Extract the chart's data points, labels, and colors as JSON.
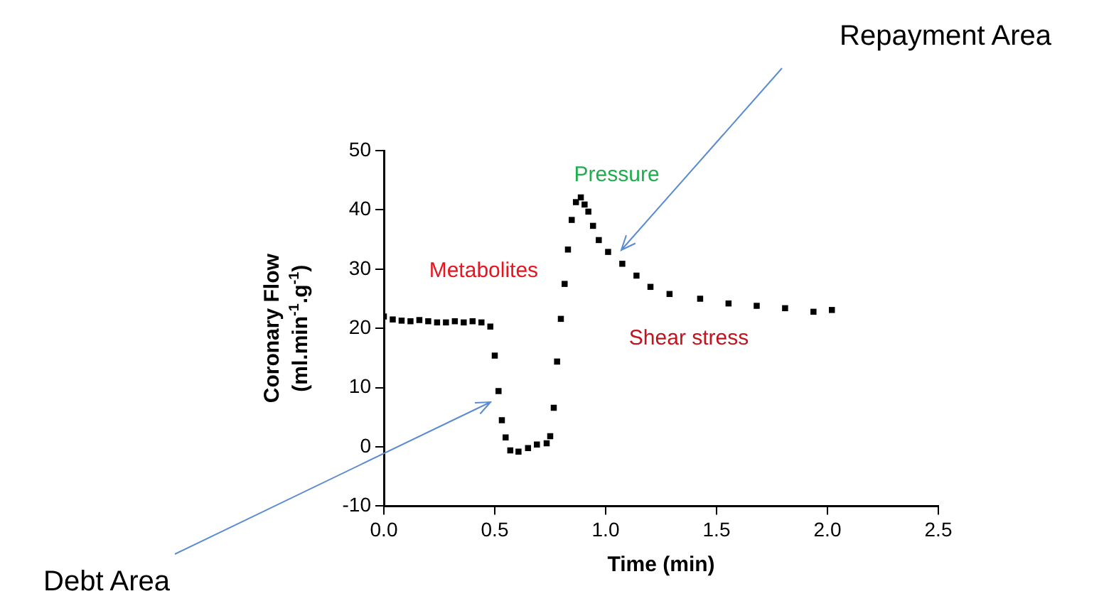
{
  "chart_data": {
    "type": "scatter",
    "xlabel": "Time (min)",
    "ylabel": "Coronary Flow (ml.min$^{-1}$.g$^{-1}$)",
    "x": [
      0,
      0.04,
      0.08,
      0.12,
      0.16,
      0.2,
      0.24,
      0.28,
      0.32,
      0.36,
      0.4,
      0.44,
      0.48,
      0.5,
      0.517,
      0.532,
      0.549,
      0.57,
      0.607,
      0.65,
      0.69,
      0.734,
      0.75,
      0.766,
      0.781,
      0.798,
      0.815,
      0.83,
      0.847,
      0.866,
      0.888,
      0.905,
      0.922,
      0.943,
      0.969,
      1.011,
      1.075,
      1.139,
      1.202,
      1.288,
      1.426,
      1.554,
      1.681,
      1.809,
      1.937,
      2.02
    ],
    "series": [
      {
        "color": "#000000",
        "values": [
          22,
          21.5,
          21.3,
          21.2,
          21.4,
          21.2,
          21,
          21,
          21.2,
          21,
          21.2,
          21,
          20.3,
          15.4,
          9.4,
          4.5,
          1.6,
          -0.6,
          -0.8,
          -0.2,
          0.4,
          0.6,
          1.8,
          6.6,
          14.4,
          21.6,
          27.5,
          33.3,
          38.3,
          41.3,
          42.1,
          40.9,
          39.7,
          37.3,
          34.9,
          32.9,
          30.9,
          28.9,
          27,
          25.8,
          25,
          24.2,
          23.8,
          23.4,
          22.8,
          23.1
        ]
      }
    ],
    "xlim": [
      0,
      2.5
    ],
    "xticks": [
      {
        "value": 0,
        "label": "0.0"
      },
      {
        "value": 0.5,
        "label": "0.5"
      },
      {
        "value": 1,
        "label": "1.0"
      },
      {
        "value": 1.5,
        "label": "1.5"
      },
      {
        "value": 2,
        "label": "2.0"
      },
      {
        "value": 2.5,
        "label": "2.5"
      }
    ],
    "ylim": [
      -10,
      50
    ],
    "yticks": [
      -10,
      0,
      10,
      20,
      30,
      40,
      50
    ],
    "grid": false,
    "legend": false,
    "marker": "square",
    "annotations": [
      "Metabolites",
      "Pressure",
      "Shear stress",
      "Repayment Area",
      "Debt Area"
    ]
  }
}
